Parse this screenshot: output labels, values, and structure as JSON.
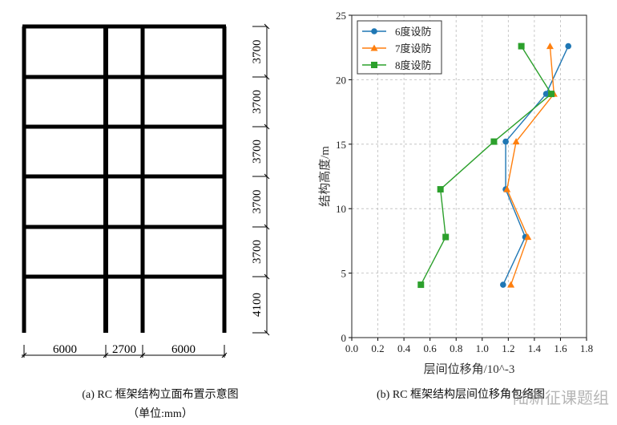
{
  "frame_figure": {
    "caption": "(a) RC 框架结构立面布置示意图",
    "unit_note": "（单位:mm）",
    "bay_widths": [
      "6000",
      "2700",
      "6000"
    ],
    "story_heights_top_down": [
      "3700",
      "3700",
      "3700",
      "3700",
      "3700",
      "4100"
    ]
  },
  "chart_data": {
    "type": "line",
    "caption": "(b) RC 框架结构层间位移角包络图",
    "xlabel": "层间位移角/10^-3",
    "ylabel": "结构高度/m",
    "xlim": [
      0,
      1.8
    ],
    "ylim": [
      0,
      25
    ],
    "xticks": [
      "0.0",
      "0.2",
      "0.4",
      "0.6",
      "0.8",
      "1.0",
      "1.2",
      "1.4",
      "1.6",
      "1.8"
    ],
    "yticks": [
      "0",
      "5",
      "10",
      "15",
      "20",
      "25"
    ],
    "grid": true,
    "legend_position": "top-left",
    "y": [
      4.1,
      7.8,
      11.5,
      15.2,
      18.9,
      22.6
    ],
    "series": [
      {
        "name": "6度设防",
        "color": "#1f77b4",
        "marker": "circle",
        "values": [
          1.16,
          1.33,
          1.18,
          1.18,
          1.49,
          1.66
        ]
      },
      {
        "name": "7度设防",
        "color": "#ff7f0e",
        "marker": "triangle",
        "values": [
          1.22,
          1.35,
          1.19,
          1.26,
          1.55,
          1.52
        ]
      },
      {
        "name": "8度设防",
        "color": "#2ca02c",
        "marker": "square",
        "values": [
          0.53,
          0.72,
          0.68,
          1.09,
          1.53,
          1.3
        ]
      }
    ]
  },
  "watermark": "陆新征课题组"
}
